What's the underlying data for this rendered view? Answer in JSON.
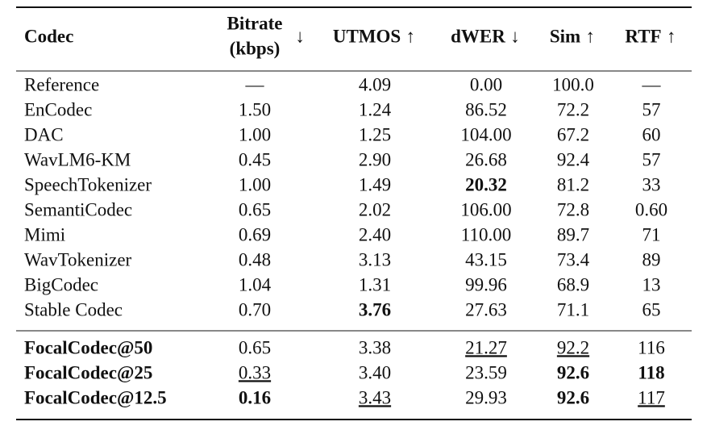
{
  "table": {
    "header": [
      {
        "label": [
          "Codec"
        ]
      },
      {
        "label": [
          "Bitrate",
          "(kbps)"
        ],
        "arrow": "↓"
      },
      {
        "label": [
          "UTMOS"
        ],
        "arrow": "↑"
      },
      {
        "label": [
          "dWER"
        ],
        "arrow": "↓"
      },
      {
        "label": [
          "Sim"
        ],
        "arrow": "↑"
      },
      {
        "label": [
          "RTF"
        ],
        "arrow": "↑"
      }
    ],
    "groups": [
      [
        [
          "Reference",
          "—",
          "4.09",
          "0.00",
          "100.0",
          "—"
        ],
        [
          "EnCodec",
          "1.50",
          "1.24",
          "86.52",
          "72.2",
          "57"
        ],
        [
          "DAC",
          "1.00",
          "1.25",
          "104.00",
          "67.2",
          "60"
        ],
        [
          "WavLM6-KM",
          "0.45",
          "2.90",
          "26.68",
          "92.4",
          "57"
        ],
        [
          "SpeechTokenizer",
          "1.00",
          "1.49",
          "20.32",
          "81.2",
          "33"
        ],
        [
          "SemantiCodec",
          "0.65",
          "2.02",
          "106.00",
          "72.8",
          "0.60"
        ],
        [
          "Mimi",
          "0.69",
          "2.40",
          "110.00",
          "89.7",
          "71"
        ],
        [
          "WavTokenizer",
          "0.48",
          "3.13",
          "43.15",
          "73.4",
          "89"
        ],
        [
          "BigCodec",
          "1.04",
          "1.31",
          "99.96",
          "68.9",
          "13"
        ],
        [
          "Stable Codec",
          "0.70",
          "3.76",
          "27.63",
          "71.1",
          "65"
        ]
      ],
      [
        [
          "FocalCodec@50",
          "0.65",
          "3.38",
          "21.27",
          "92.2",
          "116"
        ],
        [
          "FocalCodec@25",
          "0.33",
          "3.40",
          "23.59",
          "92.6",
          "118"
        ],
        [
          "FocalCodec@12.5",
          "0.16",
          "3.43",
          "29.93",
          "92.6",
          "117"
        ]
      ]
    ]
  }
}
